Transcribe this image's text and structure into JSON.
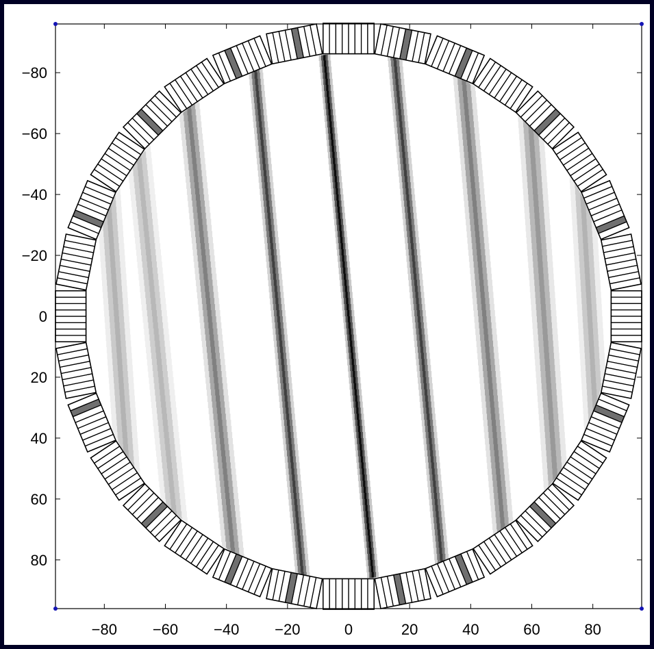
{
  "chart_data": {
    "type": "heatmap",
    "title": "",
    "xlabel": "",
    "ylabel": "",
    "xlim": [
      -96,
      96
    ],
    "ylim": [
      -96,
      96
    ],
    "y_axis_inverted": true,
    "xticks": [
      -80,
      -60,
      -40,
      -20,
      0,
      20,
      40,
      60,
      80
    ],
    "xtick_labels": [
      "−80",
      "−60",
      "−40",
      "−20",
      "0",
      "20",
      "40",
      "60",
      "80"
    ],
    "yticks": [
      -80,
      -60,
      -40,
      -20,
      0,
      20,
      40,
      60,
      80
    ],
    "ytick_labels": [
      "−80",
      "−60",
      "−40",
      "−20",
      "0",
      "20",
      "40",
      "60",
      "80"
    ],
    "grid": false,
    "colormap": "gray (white = 0, black = max)",
    "field_of_view": {
      "shape": "circle",
      "center": [
        0,
        0
      ],
      "radius": 86
    },
    "stripes": {
      "description": "interference fringes; each stripe runs from top (y=-86) to bottom (y=86), x increases with y",
      "top_x": [
        -82,
        -72,
        -54,
        -31,
        -8,
        15,
        37,
        58,
        74
      ],
      "bottom_x": [
        -70,
        -55,
        -37,
        -15,
        8,
        31,
        52,
        70,
        84
      ],
      "peak_intensity": [
        0.3,
        0.28,
        0.5,
        0.75,
        0.95,
        0.75,
        0.5,
        0.4,
        0.3
      ],
      "width": [
        3.5,
        3.5,
        3,
        2,
        1.6,
        2,
        3,
        3.5,
        3.5
      ]
    },
    "detector_ring": {
      "inner_radius": 86,
      "outer_radius": 96,
      "modules": 32,
      "elements_per_module": 8,
      "highlighted": [
        {
          "angle_deg": -96,
          "element": 4
        },
        {
          "angle_deg": -84,
          "element": 4
        },
        {
          "angle_deg": -113,
          "element": 2
        },
        {
          "angle_deg": -67,
          "element": 5
        },
        {
          "angle_deg": -136,
          "element": 3
        },
        {
          "angle_deg": -44,
          "element": 4
        },
        {
          "angle_deg": -157,
          "element": 2
        },
        {
          "angle_deg": -23,
          "element": 6
        },
        {
          "angle_deg": 84,
          "element": 4
        },
        {
          "angle_deg": 96,
          "element": 4
        },
        {
          "angle_deg": 67,
          "element": 2
        },
        {
          "angle_deg": 113,
          "element": 5
        },
        {
          "angle_deg": 44,
          "element": 4
        },
        {
          "angle_deg": 136,
          "element": 3
        },
        {
          "angle_deg": 23,
          "element": 2
        },
        {
          "angle_deg": 157,
          "element": 6
        }
      ]
    }
  },
  "colors": {
    "figure_background": "#000024",
    "axes_background": "#ffffff",
    "axis_line": "#000000",
    "corner_marker": "#1414b4",
    "highlight_element": "#707070"
  }
}
